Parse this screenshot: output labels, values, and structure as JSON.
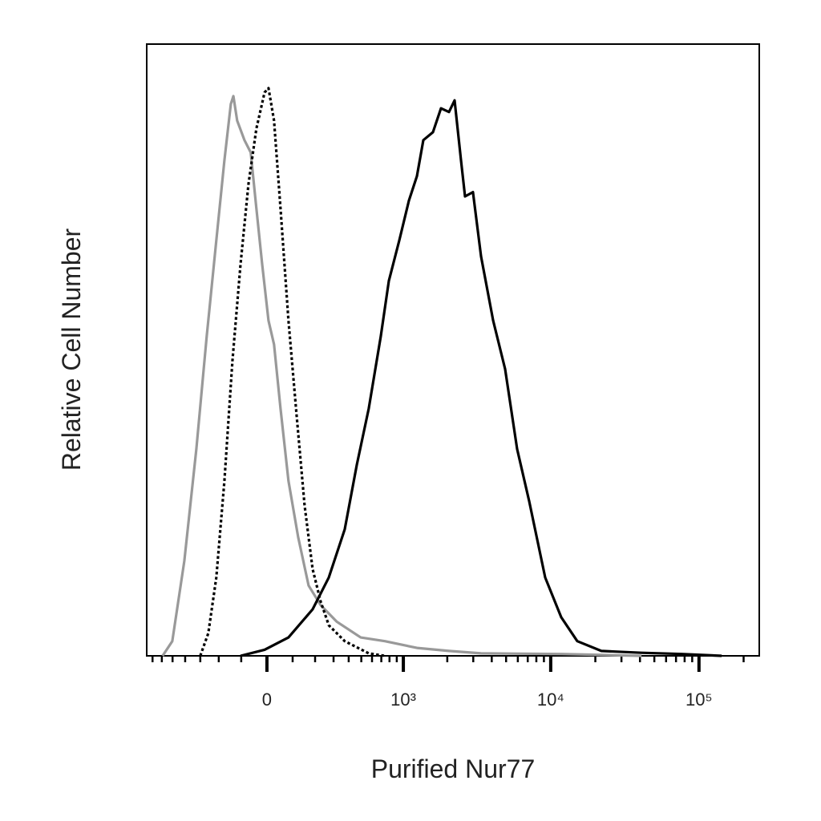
{
  "chart_data": {
    "type": "line",
    "xlabel": "Purified Nur77",
    "ylabel": "Relative Cell Number",
    "xscale": "biexponential",
    "xlim": [
      -770,
      255000
    ],
    "ylim": [
      0,
      100
    ],
    "xticks": [
      0,
      {
        "value": 1000,
        "label": "10³"
      },
      {
        "value": 10000,
        "label": "10⁴"
      },
      {
        "value": 100000,
        "label": "10⁵"
      }
    ],
    "xminorticks": [
      -700,
      -600,
      -500,
      -400,
      -300,
      -200,
      -100,
      100,
      200,
      300,
      400,
      500,
      600,
      700,
      800,
      900,
      2000,
      3000,
      4000,
      5000,
      6000,
      7000,
      8000,
      9000,
      20000,
      30000,
      40000,
      50000,
      60000,
      70000,
      80000,
      90000,
      200000
    ],
    "series": [
      {
        "color": "#999999",
        "dash": "solid",
        "x": [
          -592,
          -502,
          -406,
          -324,
          -263,
          -212,
          -173,
          -144,
          -133,
          -117,
          -87,
          -62,
          -40,
          -18,
          6,
          27,
          52,
          83,
          123,
          169,
          228,
          319,
          495,
          742,
          1241,
          2055,
          3387,
          11778,
          40943
        ],
        "values": [
          0,
          2.4,
          15.5,
          33.8,
          52.2,
          67.9,
          81.0,
          90.2,
          91.5,
          87.5,
          84.3,
          82.3,
          73.1,
          64.0,
          54.8,
          50.9,
          40.4,
          28.6,
          19.4,
          11.5,
          8.3,
          5.6,
          3.0,
          2.4,
          1.3,
          0.8,
          0.4,
          0.3,
          0
        ]
      },
      {
        "color": "#000000",
        "dash": "dotted",
        "x": [
          -300,
          -254,
          -212,
          -173,
          -137,
          -103,
          -71,
          -40,
          -9,
          6,
          27,
          52,
          83,
          117,
          151,
          188,
          228,
          272,
          372,
          568,
          742
        ],
        "values": [
          0,
          3.7,
          12.8,
          28.6,
          48.2,
          64.0,
          77.1,
          86.2,
          92.1,
          92.8,
          87.5,
          73.1,
          54.8,
          39.1,
          24.6,
          14.2,
          8.9,
          5.0,
          2.4,
          0.4,
          0
        ]
      },
      {
        "color": "#000000",
        "dash": "solid",
        "x": [
          -103,
          -9,
          83,
          188,
          272,
          372,
          462,
          568,
          694,
          792,
          937,
          1092,
          1241,
          1373,
          1597,
          1811,
          2055,
          2243,
          2479,
          2638,
          2987,
          3387,
          4087,
          4926,
          5934,
          7154,
          9179,
          11778,
          15104,
          21960,
          40943,
          76300,
          142300
        ],
        "values": [
          0,
          1.0,
          3.0,
          7.6,
          12.8,
          20.7,
          31.2,
          40.4,
          52.2,
          61.3,
          67.9,
          74.4,
          78.4,
          84.3,
          85.6,
          89.5,
          88.9,
          90.8,
          81.0,
          75.1,
          75.8,
          65.3,
          54.8,
          46.9,
          33.8,
          25.3,
          12.8,
          6.3,
          2.4,
          0.8,
          0.5,
          0.3,
          0
        ]
      }
    ]
  }
}
